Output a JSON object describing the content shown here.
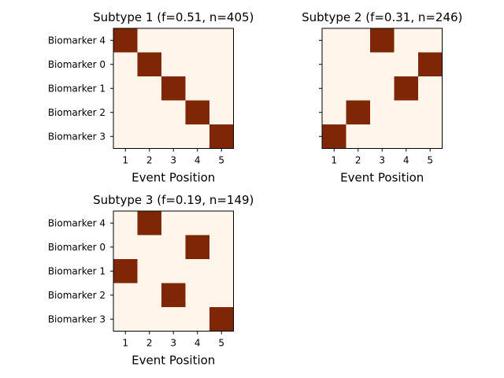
{
  "chart_data": [
    {
      "type": "heatmap",
      "title": "Subtype 1 (f=0.51, n=405)",
      "xlabel": "Event Position",
      "ylabel": "",
      "x_ticks": [
        "1",
        "2",
        "3",
        "4",
        "5"
      ],
      "rows": [
        "Biomarker 4",
        "Biomarker 0",
        "Biomarker 1",
        "Biomarker 2",
        "Biomarker 3"
      ],
      "show_row_labels": true,
      "values": [
        [
          1,
          0,
          0,
          0,
          0
        ],
        [
          0,
          1,
          0,
          0,
          0
        ],
        [
          0,
          0,
          1,
          0,
          0
        ],
        [
          0,
          0,
          0,
          1,
          0
        ],
        [
          0,
          0,
          0,
          0,
          1
        ]
      ]
    },
    {
      "type": "heatmap",
      "title": "Subtype 2 (f=0.31, n=246)",
      "xlabel": "Event Position",
      "ylabel": "",
      "x_ticks": [
        "1",
        "2",
        "3",
        "4",
        "5"
      ],
      "rows": [
        "Biomarker 4",
        "Biomarker 0",
        "Biomarker 1",
        "Biomarker 2",
        "Biomarker 3"
      ],
      "show_row_labels": false,
      "values": [
        [
          0,
          0,
          1,
          0,
          0
        ],
        [
          0,
          0,
          0,
          0,
          1
        ],
        [
          0,
          0,
          0,
          1,
          0
        ],
        [
          0,
          1,
          0,
          0,
          0
        ],
        [
          1,
          0,
          0,
          0,
          0
        ]
      ]
    },
    {
      "type": "heatmap",
      "title": "Subtype 3 (f=0.19, n=149)",
      "xlabel": "Event Position",
      "ylabel": "",
      "x_ticks": [
        "1",
        "2",
        "3",
        "4",
        "5"
      ],
      "rows": [
        "Biomarker 4",
        "Biomarker 0",
        "Biomarker 1",
        "Biomarker 2",
        "Biomarker 3"
      ],
      "show_row_labels": true,
      "values": [
        [
          0,
          1,
          0,
          0,
          0
        ],
        [
          0,
          0,
          0,
          1,
          0
        ],
        [
          1,
          0,
          0,
          0,
          0
        ],
        [
          0,
          0,
          1,
          0,
          0
        ],
        [
          0,
          0,
          0,
          0,
          1
        ]
      ]
    }
  ],
  "colors": {
    "cell_high": "#7f2704",
    "cell_low": "#fff5eb",
    "axis": "#000000"
  }
}
